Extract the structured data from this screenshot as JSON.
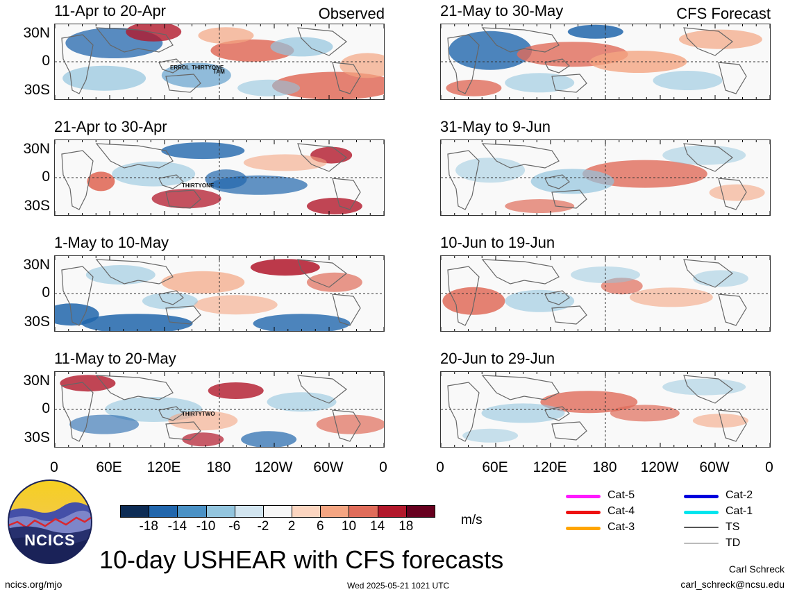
{
  "corner_labels": {
    "observed": "Observed",
    "forecast": "CFS Forecast"
  },
  "observed_panels": [
    {
      "title": "11-Apr to 20-Apr",
      "storms": [
        "ERROL",
        "THIRTYONE",
        "TAM"
      ]
    },
    {
      "title": "21-Apr to 30-Apr",
      "storms": [
        "THIRTYONE"
      ]
    },
    {
      "title": "1-May to 10-May",
      "storms": []
    },
    {
      "title": "11-May to 20-May",
      "storms": [
        "THIRTYTWO"
      ]
    }
  ],
  "forecast_panels": [
    {
      "title": "21-May to 30-May"
    },
    {
      "title": "31-May to 9-Jun"
    },
    {
      "title": "10-Jun to 19-Jun"
    },
    {
      "title": "20-Jun to 29-Jun"
    }
  ],
  "lat_labels": [
    "30N",
    "0",
    "30S"
  ],
  "lon_labels": [
    "0",
    "60E",
    "120E",
    "180",
    "120W",
    "60W",
    "0"
  ],
  "colorbar": {
    "colors": [
      "#0d2c55",
      "#2166ac",
      "#4a91c5",
      "#93c5de",
      "#d2e5f0",
      "#f7f7f7",
      "#fbd5c0",
      "#f4a582",
      "#e06c5a",
      "#b2182b",
      "#67001f"
    ],
    "ticks": [
      "-18",
      "-14",
      "-10",
      "-6",
      "-2",
      "2",
      "6",
      "10",
      "14",
      "18"
    ],
    "units": "m/s"
  },
  "track_legend": [
    {
      "label": "Cat-5",
      "color": "#ff1aff"
    },
    {
      "label": "Cat-4",
      "color": "#ee1111"
    },
    {
      "label": "Cat-3",
      "color": "#ffa500"
    },
    {
      "label": "Cat-2",
      "color": "#0000dd"
    },
    {
      "label": "Cat-1",
      "color": "#00e5ee"
    },
    {
      "label": "TS",
      "color": "#555555"
    },
    {
      "label": "TD",
      "color": "#bbbbbb"
    }
  ],
  "logo": {
    "text": "NCICS"
  },
  "title": "10-day USHEAR with CFS forecasts",
  "footer": {
    "site": "ncics.org/mjo",
    "timestamp": "Wed 2025-05-21 1021 UTC",
    "author": "Carl Schreck",
    "email": "carl_schreck@ncsu.edu"
  }
}
